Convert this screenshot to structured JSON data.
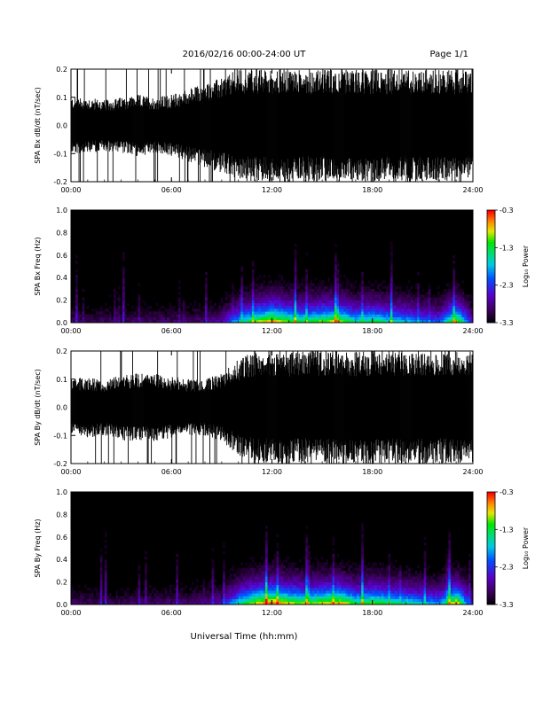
{
  "header": {
    "date_range": "2016/02/16  00:00-24:00 UT",
    "page": "Page 1/1"
  },
  "xlabel": "Universal Time (hh:mm)",
  "colorbar": {
    "label": "Log₁₀ Power",
    "ticks": [
      "-0.3",
      "-1.3",
      "-2.3",
      "-3.3"
    ],
    "range": [
      -3.3,
      -0.3
    ]
  },
  "chart_data": [
    {
      "type": "line",
      "ylabel": "SPA Bx dB/dt (nT/sec)",
      "x_ticks": [
        "00:00",
        "06:00",
        "12:00",
        "18:00",
        "24:00"
      ],
      "y_ticks": [
        "0.2",
        "0.1",
        "0.0",
        "-0.1",
        "-0.2"
      ],
      "xlim": [
        0,
        24
      ],
      "ylim": [
        -0.2,
        0.2
      ],
      "envelope": {
        "hours": [
          0,
          1,
          2,
          3,
          4,
          5,
          6,
          7,
          8,
          9,
          10,
          11,
          12,
          13,
          14,
          15,
          16,
          17,
          18,
          19,
          20,
          21,
          22,
          23,
          24
        ],
        "amplitude": [
          0.1,
          0.1,
          0.09,
          0.1,
          0.11,
          0.1,
          0.11,
          0.13,
          0.15,
          0.17,
          0.2,
          0.2,
          0.2,
          0.2,
          0.2,
          0.2,
          0.2,
          0.2,
          0.2,
          0.2,
          0.2,
          0.2,
          0.2,
          0.2,
          0.2
        ]
      }
    },
    {
      "type": "heatmap",
      "ylabel": "SPA Bx Freq (Hz)",
      "x_ticks": [
        "00:00",
        "06:00",
        "12:00",
        "18:00",
        "24:00"
      ],
      "y_ticks": [
        "1.0",
        "0.8",
        "0.6",
        "0.4",
        "0.2",
        "0.0"
      ],
      "xlim": [
        0,
        24
      ],
      "ylim": [
        0,
        1.0
      ],
      "activity_by_hour": [
        0.15,
        0.12,
        0.14,
        0.12,
        0.15,
        0.14,
        0.15,
        0.14,
        0.16,
        0.2,
        0.4,
        0.55,
        0.65,
        0.55,
        0.5,
        0.55,
        0.6,
        0.45,
        0.5,
        0.45,
        0.4,
        0.35,
        0.3,
        0.6,
        0.2
      ]
    },
    {
      "type": "line",
      "ylabel": "SPA By dB/dt (nT/sec)",
      "x_ticks": [
        "00:00",
        "06:00",
        "12:00",
        "18:00",
        "24:00"
      ],
      "y_ticks": [
        "0.2",
        "0.1",
        "0.0",
        "-0.1",
        "-0.2"
      ],
      "xlim": [
        0,
        24
      ],
      "ylim": [
        -0.2,
        0.2
      ],
      "envelope": {
        "hours": [
          0,
          1,
          2,
          3,
          4,
          5,
          6,
          7,
          8,
          9,
          10,
          11,
          12,
          13,
          14,
          15,
          16,
          17,
          18,
          19,
          20,
          21,
          22,
          23,
          24
        ],
        "amplitude": [
          0.1,
          0.11,
          0.1,
          0.12,
          0.12,
          0.12,
          0.11,
          0.1,
          0.1,
          0.12,
          0.17,
          0.2,
          0.2,
          0.2,
          0.2,
          0.2,
          0.2,
          0.2,
          0.2,
          0.2,
          0.2,
          0.2,
          0.2,
          0.2,
          0.2
        ]
      }
    },
    {
      "type": "heatmap",
      "ylabel": "SPA By Freq (Hz)",
      "x_ticks": [
        "00:00",
        "06:00",
        "12:00",
        "18:00",
        "24:00"
      ],
      "y_ticks": [
        "1.0",
        "0.8",
        "0.6",
        "0.4",
        "0.2",
        "0.0"
      ],
      "xlim": [
        0,
        24
      ],
      "ylim": [
        0,
        1.0
      ],
      "activity_by_hour": [
        0.15,
        0.13,
        0.14,
        0.12,
        0.15,
        0.14,
        0.16,
        0.15,
        0.17,
        0.22,
        0.45,
        0.6,
        0.7,
        0.6,
        0.55,
        0.6,
        0.65,
        0.5,
        0.55,
        0.5,
        0.45,
        0.4,
        0.35,
        0.65,
        0.2
      ]
    }
  ]
}
